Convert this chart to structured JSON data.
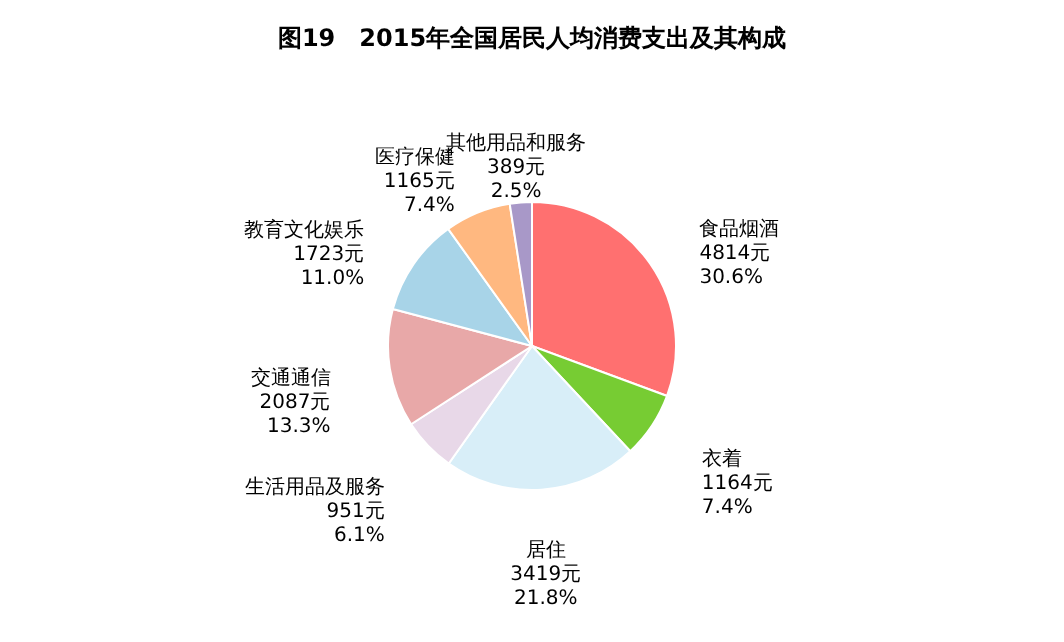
{
  "chart_data": {
    "type": "pie",
    "title": "图19　2015年全国居民人均消费支出及其构成",
    "categories": [
      "食品烟酒",
      "衣着",
      "居住",
      "生活用品及服务",
      "交通通信",
      "教育文化娱乐",
      "医疗保健",
      "其他用品和服务"
    ],
    "values": [
      4814,
      1164,
      3419,
      951,
      2087,
      1723,
      1165,
      389
    ],
    "value_labels": [
      "4814元 30.6%",
      "1164元 7.4%",
      "3419元 21.8%",
      "951元 6.1%",
      "2087元 13.3%",
      "1723元 11.0%",
      "1165元 7.4%",
      "389元 2.5%"
    ],
    "colors": [
      "#ff7070",
      "#77cc33",
      "#d8eef8",
      "#e8d8e8",
      "#e8a8a8",
      "#a8d4e8",
      "#ffb880",
      "#a898c8"
    ]
  }
}
